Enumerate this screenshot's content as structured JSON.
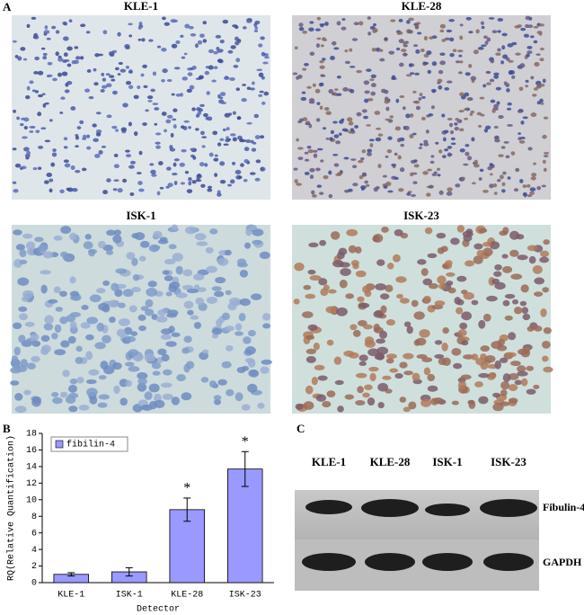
{
  "panel_a": {
    "label": "A",
    "images": [
      {
        "title": "KLE-1"
      },
      {
        "title": "KLE-28"
      },
      {
        "title": "ISK-1"
      },
      {
        "title": "ISK-23"
      }
    ]
  },
  "chart_data": {
    "type": "bar",
    "panel_label": "B",
    "categories": [
      "KLE-1",
      "ISK-1",
      "KLE-28",
      "ISK-23"
    ],
    "series": [
      {
        "name": "fibilin-4",
        "color": "#9999ff",
        "values": [
          1.0,
          1.3,
          8.8,
          13.7
        ],
        "errors": [
          0.2,
          0.5,
          1.4,
          2.1
        ]
      }
    ],
    "xlabel": "Detector",
    "ylabel": "RQ(Relative Quantification)",
    "ylim": [
      0,
      18
    ],
    "yticks": [
      0,
      2,
      4,
      6,
      8,
      10,
      12,
      14,
      16,
      18
    ],
    "annotations": [
      {
        "label": "*",
        "x": "KLE-28"
      },
      {
        "label": "*",
        "x": "ISK-23"
      }
    ],
    "legend": "upper-left"
  },
  "panel_c": {
    "label": "C",
    "lanes": [
      "KLE-1",
      "KLE-28",
      "ISK-1",
      "ISK-23"
    ],
    "rows": [
      "Fibulin-4",
      "GAPDH"
    ]
  }
}
